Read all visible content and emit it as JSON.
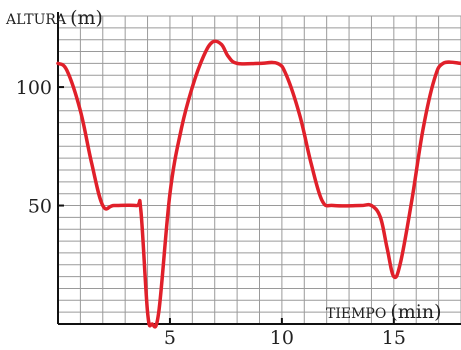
{
  "chart_data": {
    "type": "line",
    "title": "",
    "ylabel_caps": "ALTURA",
    "ylabel_unit": "(m)",
    "xlabel_caps": "TIEMPO",
    "xlabel_unit": "(min)",
    "xlim": [
      0,
      18
    ],
    "ylim": [
      0,
      130
    ],
    "grid": true,
    "x_ticks": [
      {
        "value": 5,
        "label": "5"
      },
      {
        "value": 10,
        "label": "10"
      },
      {
        "value": 15,
        "label": "15"
      }
    ],
    "y_ticks": [
      {
        "value": 50,
        "label": "50"
      },
      {
        "value": 100,
        "label": "100"
      }
    ],
    "series": [
      {
        "color": "#e0202a",
        "points": [
          [
            0,
            110
          ],
          [
            0.4,
            107
          ],
          [
            1.0,
            90
          ],
          [
            1.5,
            68
          ],
          [
            2.0,
            50
          ],
          [
            2.5,
            50
          ],
          [
            3.5,
            50
          ],
          [
            3.7,
            48
          ],
          [
            4.0,
            5
          ],
          [
            4.2,
            0
          ],
          [
            4.5,
            5
          ],
          [
            5.0,
            55
          ],
          [
            5.5,
            82
          ],
          [
            6.0,
            100
          ],
          [
            6.5,
            113
          ],
          [
            6.9,
            119
          ],
          [
            7.3,
            118
          ],
          [
            7.6,
            113
          ],
          [
            8.0,
            110
          ],
          [
            9.0,
            110
          ],
          [
            9.8,
            110
          ],
          [
            10.2,
            105
          ],
          [
            10.8,
            88
          ],
          [
            11.3,
            68
          ],
          [
            11.8,
            52
          ],
          [
            12.3,
            50
          ],
          [
            13.5,
            50
          ],
          [
            14.0,
            50
          ],
          [
            14.4,
            45
          ],
          [
            14.7,
            32
          ],
          [
            15.0,
            20
          ],
          [
            15.3,
            26
          ],
          [
            15.8,
            52
          ],
          [
            16.3,
            82
          ],
          [
            16.8,
            103
          ],
          [
            17.2,
            110
          ],
          [
            18.0,
            110
          ]
        ]
      }
    ]
  }
}
